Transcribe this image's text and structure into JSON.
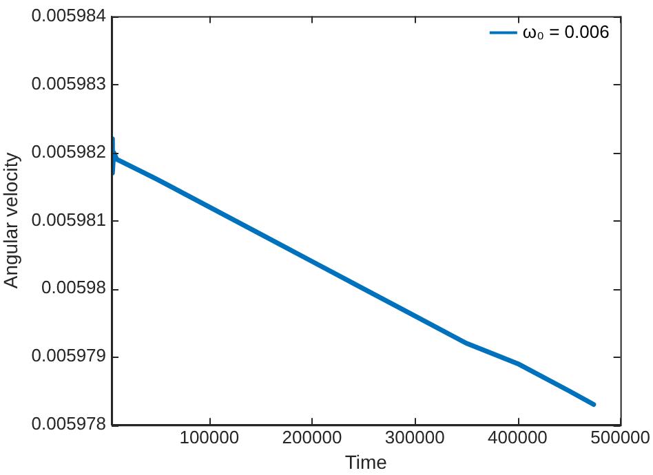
{
  "chart_data": {
    "type": "line",
    "xlabel": "Time",
    "ylabel": "Angular velocity",
    "xlim": [
      5000,
      500000
    ],
    "xticks": [
      100000,
      200000,
      300000,
      400000,
      500000
    ],
    "ylim": [
      0.005978,
      0.005984
    ],
    "yticks": [
      0.005978,
      0.005979,
      0.00598,
      0.005981,
      0.005982,
      0.005983,
      0.005984
    ],
    "grid": false,
    "legend": "top right",
    "marker": "none",
    "line_style": "solid",
    "series": [
      {
        "name": "ω₀ = 0.006",
        "color": "#0072bd",
        "x": [
          5000,
          5800,
          7000,
          10000,
          50000,
          100000,
          150000,
          200000,
          250000,
          300000,
          350000,
          400000,
          450000,
          474000
        ],
        "values": [
          0.0059822,
          0.0059817,
          0.005982,
          0.0059819,
          0.0059816,
          0.0059812,
          0.0059808,
          0.0059804,
          0.00598,
          0.0059796,
          0.0059792,
          0.0059789,
          0.0059785,
          0.0059783
        ]
      }
    ]
  }
}
